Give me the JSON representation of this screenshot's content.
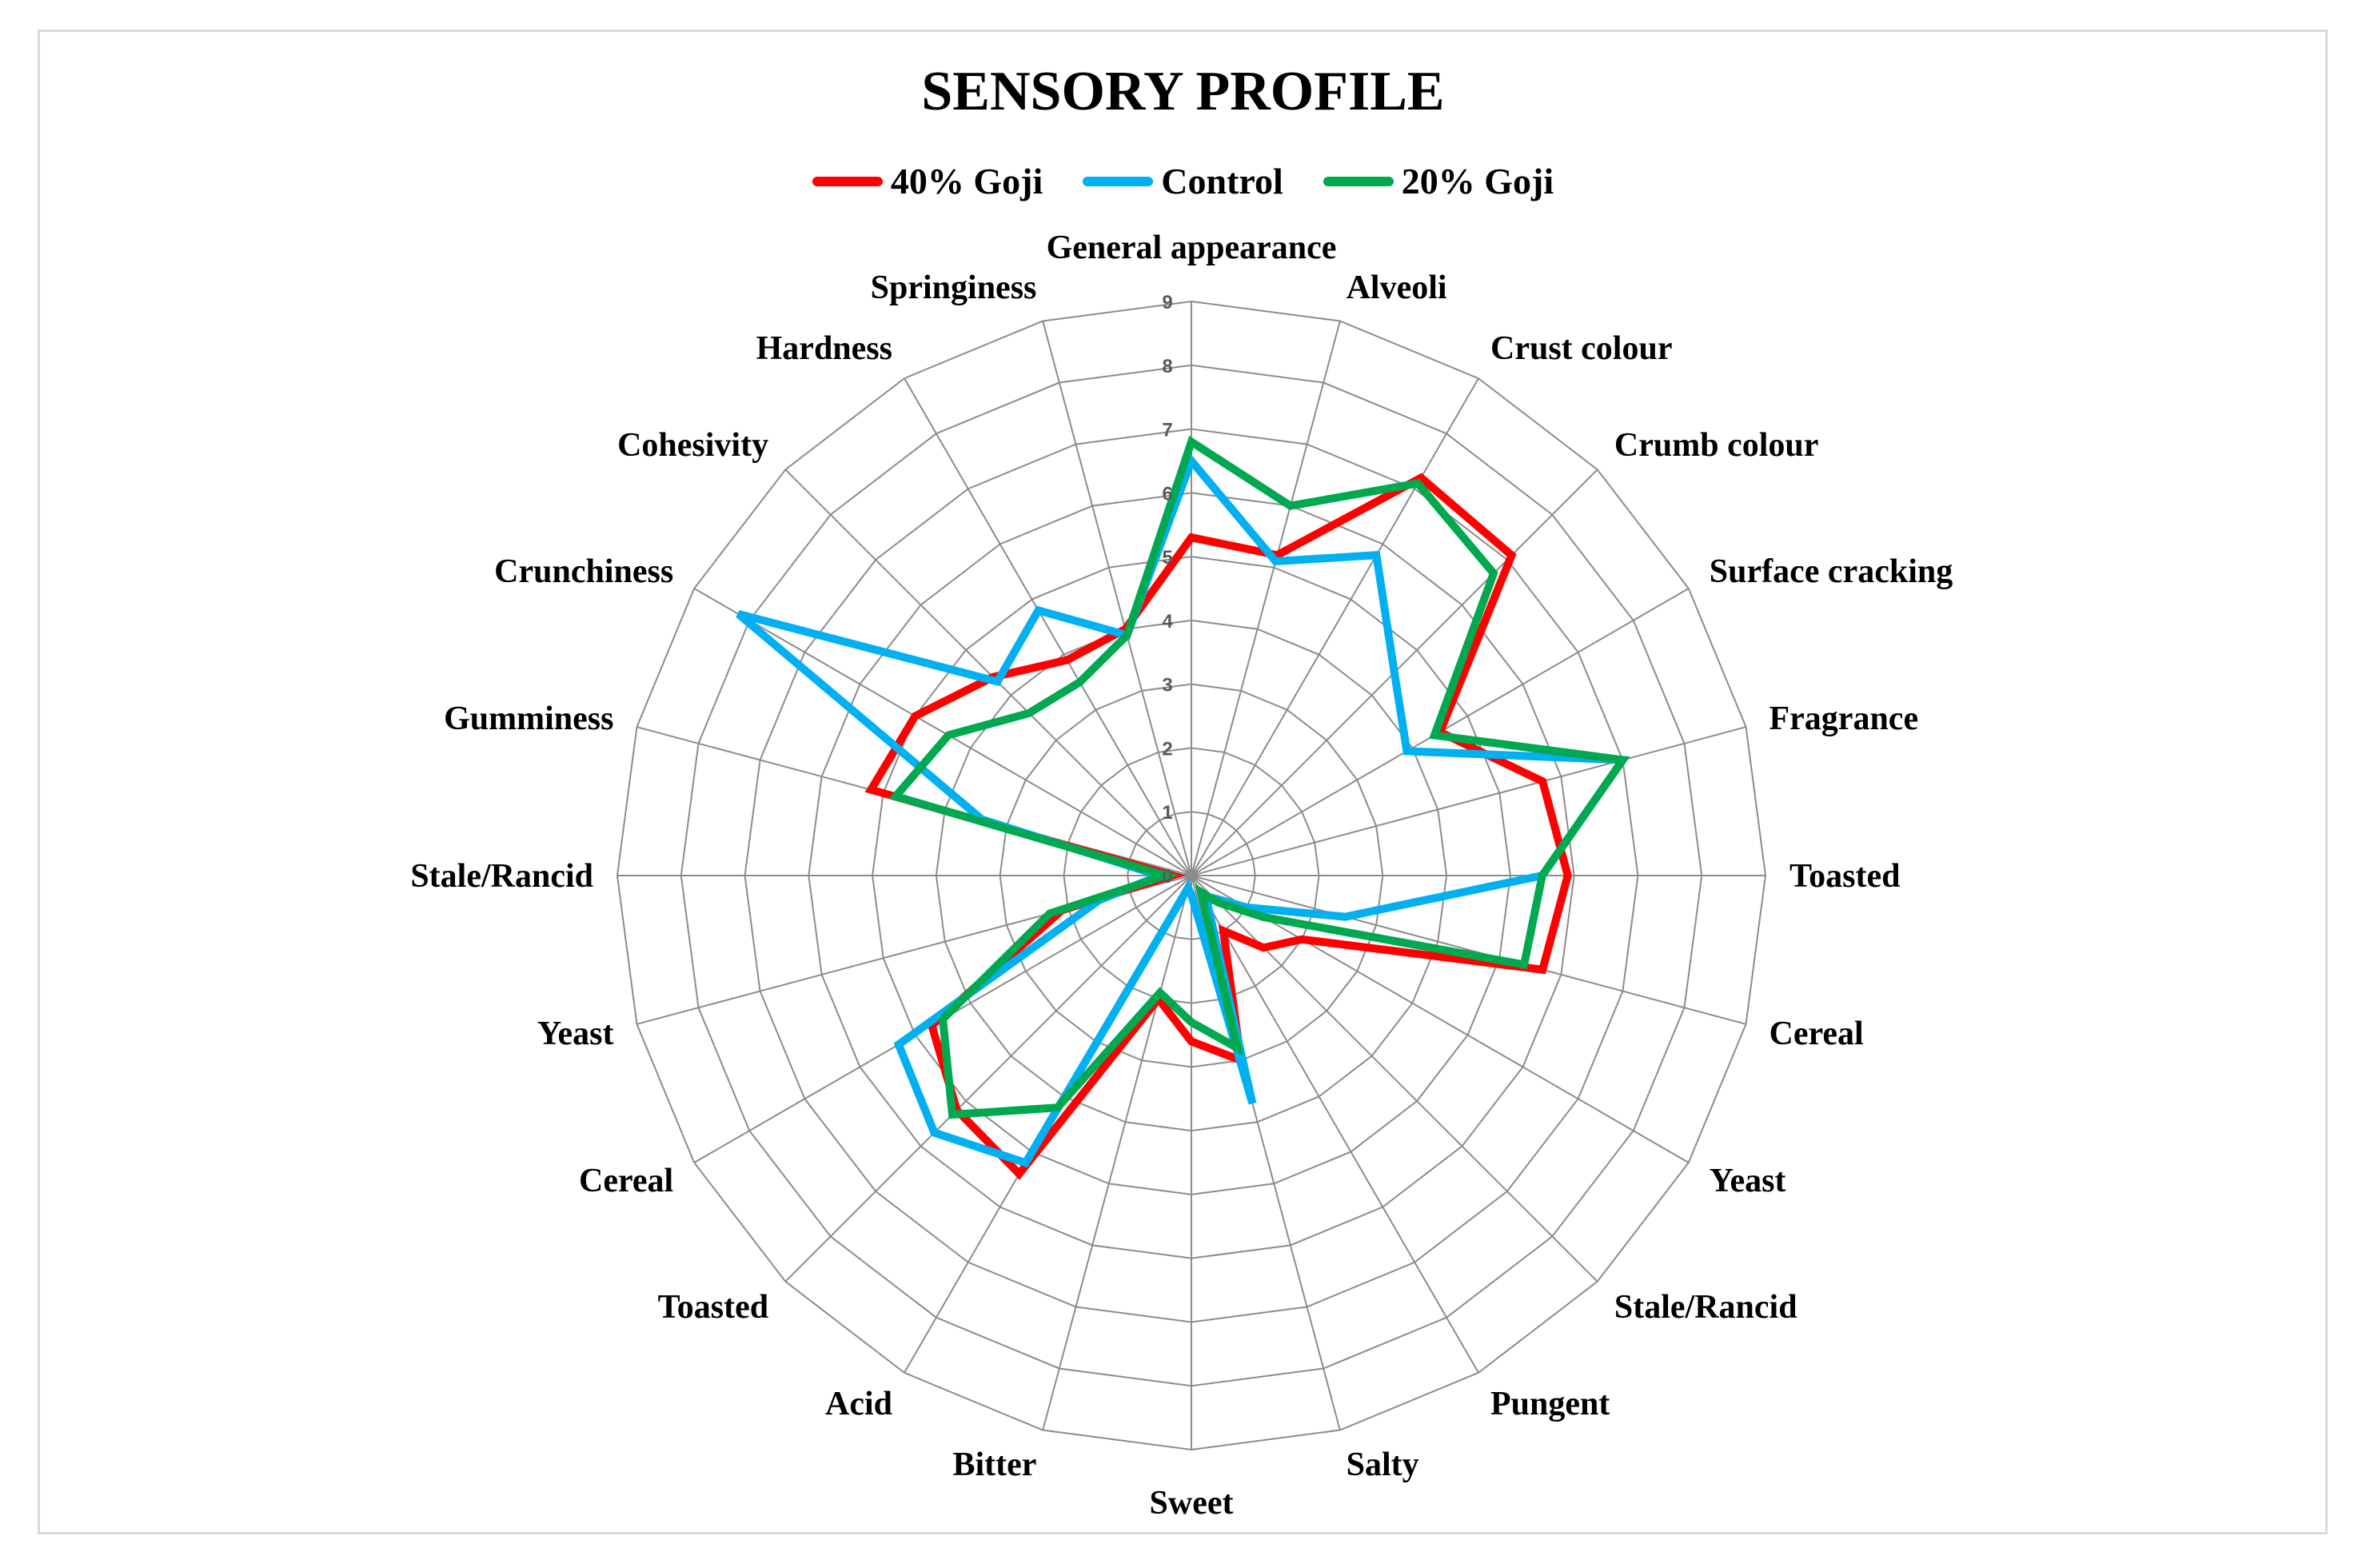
{
  "chart_data": {
    "type": "radar",
    "title": "SENSORY PROFILE",
    "legend_position": "top",
    "grid": true,
    "rlim": [
      0,
      9
    ],
    "ticks": [
      "0",
      "1",
      "2",
      "3",
      "4",
      "5",
      "6",
      "7",
      "8",
      "9"
    ],
    "categories": [
      "General appearance",
      "Alveoli",
      "Crust colour",
      "Crumb colour",
      "Surface cracking",
      "Fragrance",
      "Toasted",
      "Cereal",
      "Yeast",
      "Stale/Rancid",
      "Pungent",
      "Salty",
      "Sweet",
      "Bitter",
      "Acid",
      "Toasted",
      "Cereal",
      "Yeast",
      "Stale/Rancid",
      "Gumminess",
      "Crunchiness",
      "Cohesivity",
      "Hardness",
      "Springiness"
    ],
    "series": [
      {
        "name": "40% Goji",
        "color": "#ff0000",
        "values": [
          5.3,
          5.2,
          7.2,
          7.1,
          4.5,
          5.7,
          5.9,
          5.7,
          2.0,
          1.6,
          1.0,
          3.0,
          2.6,
          2.0,
          5.4,
          5.2,
          4.7,
          2.1,
          0.3,
          5.2,
          5.0,
          4.4,
          3.9,
          4.0
        ]
      },
      {
        "name": "Control",
        "color": "#00b0f0",
        "values": [
          6.5,
          5.1,
          5.8,
          4.5,
          3.9,
          7.0,
          5.5,
          2.5,
          1.0,
          0.5,
          0.5,
          3.7,
          0.3,
          0.2,
          5.2,
          5.7,
          5.3,
          1.5,
          0.5,
          3.4,
          8.2,
          4.3,
          4.8,
          3.9
        ]
      },
      {
        "name": "20% Goji",
        "color": "#00a850",
        "values": [
          6.8,
          6.0,
          7.1,
          6.7,
          4.4,
          7.0,
          5.5,
          5.4,
          1.3,
          0.6,
          0.3,
          2.8,
          2.3,
          1.9,
          4.2,
          5.3,
          4.5,
          2.3,
          0.4,
          4.8,
          4.4,
          3.6,
          3.5,
          3.9
        ]
      }
    ]
  }
}
